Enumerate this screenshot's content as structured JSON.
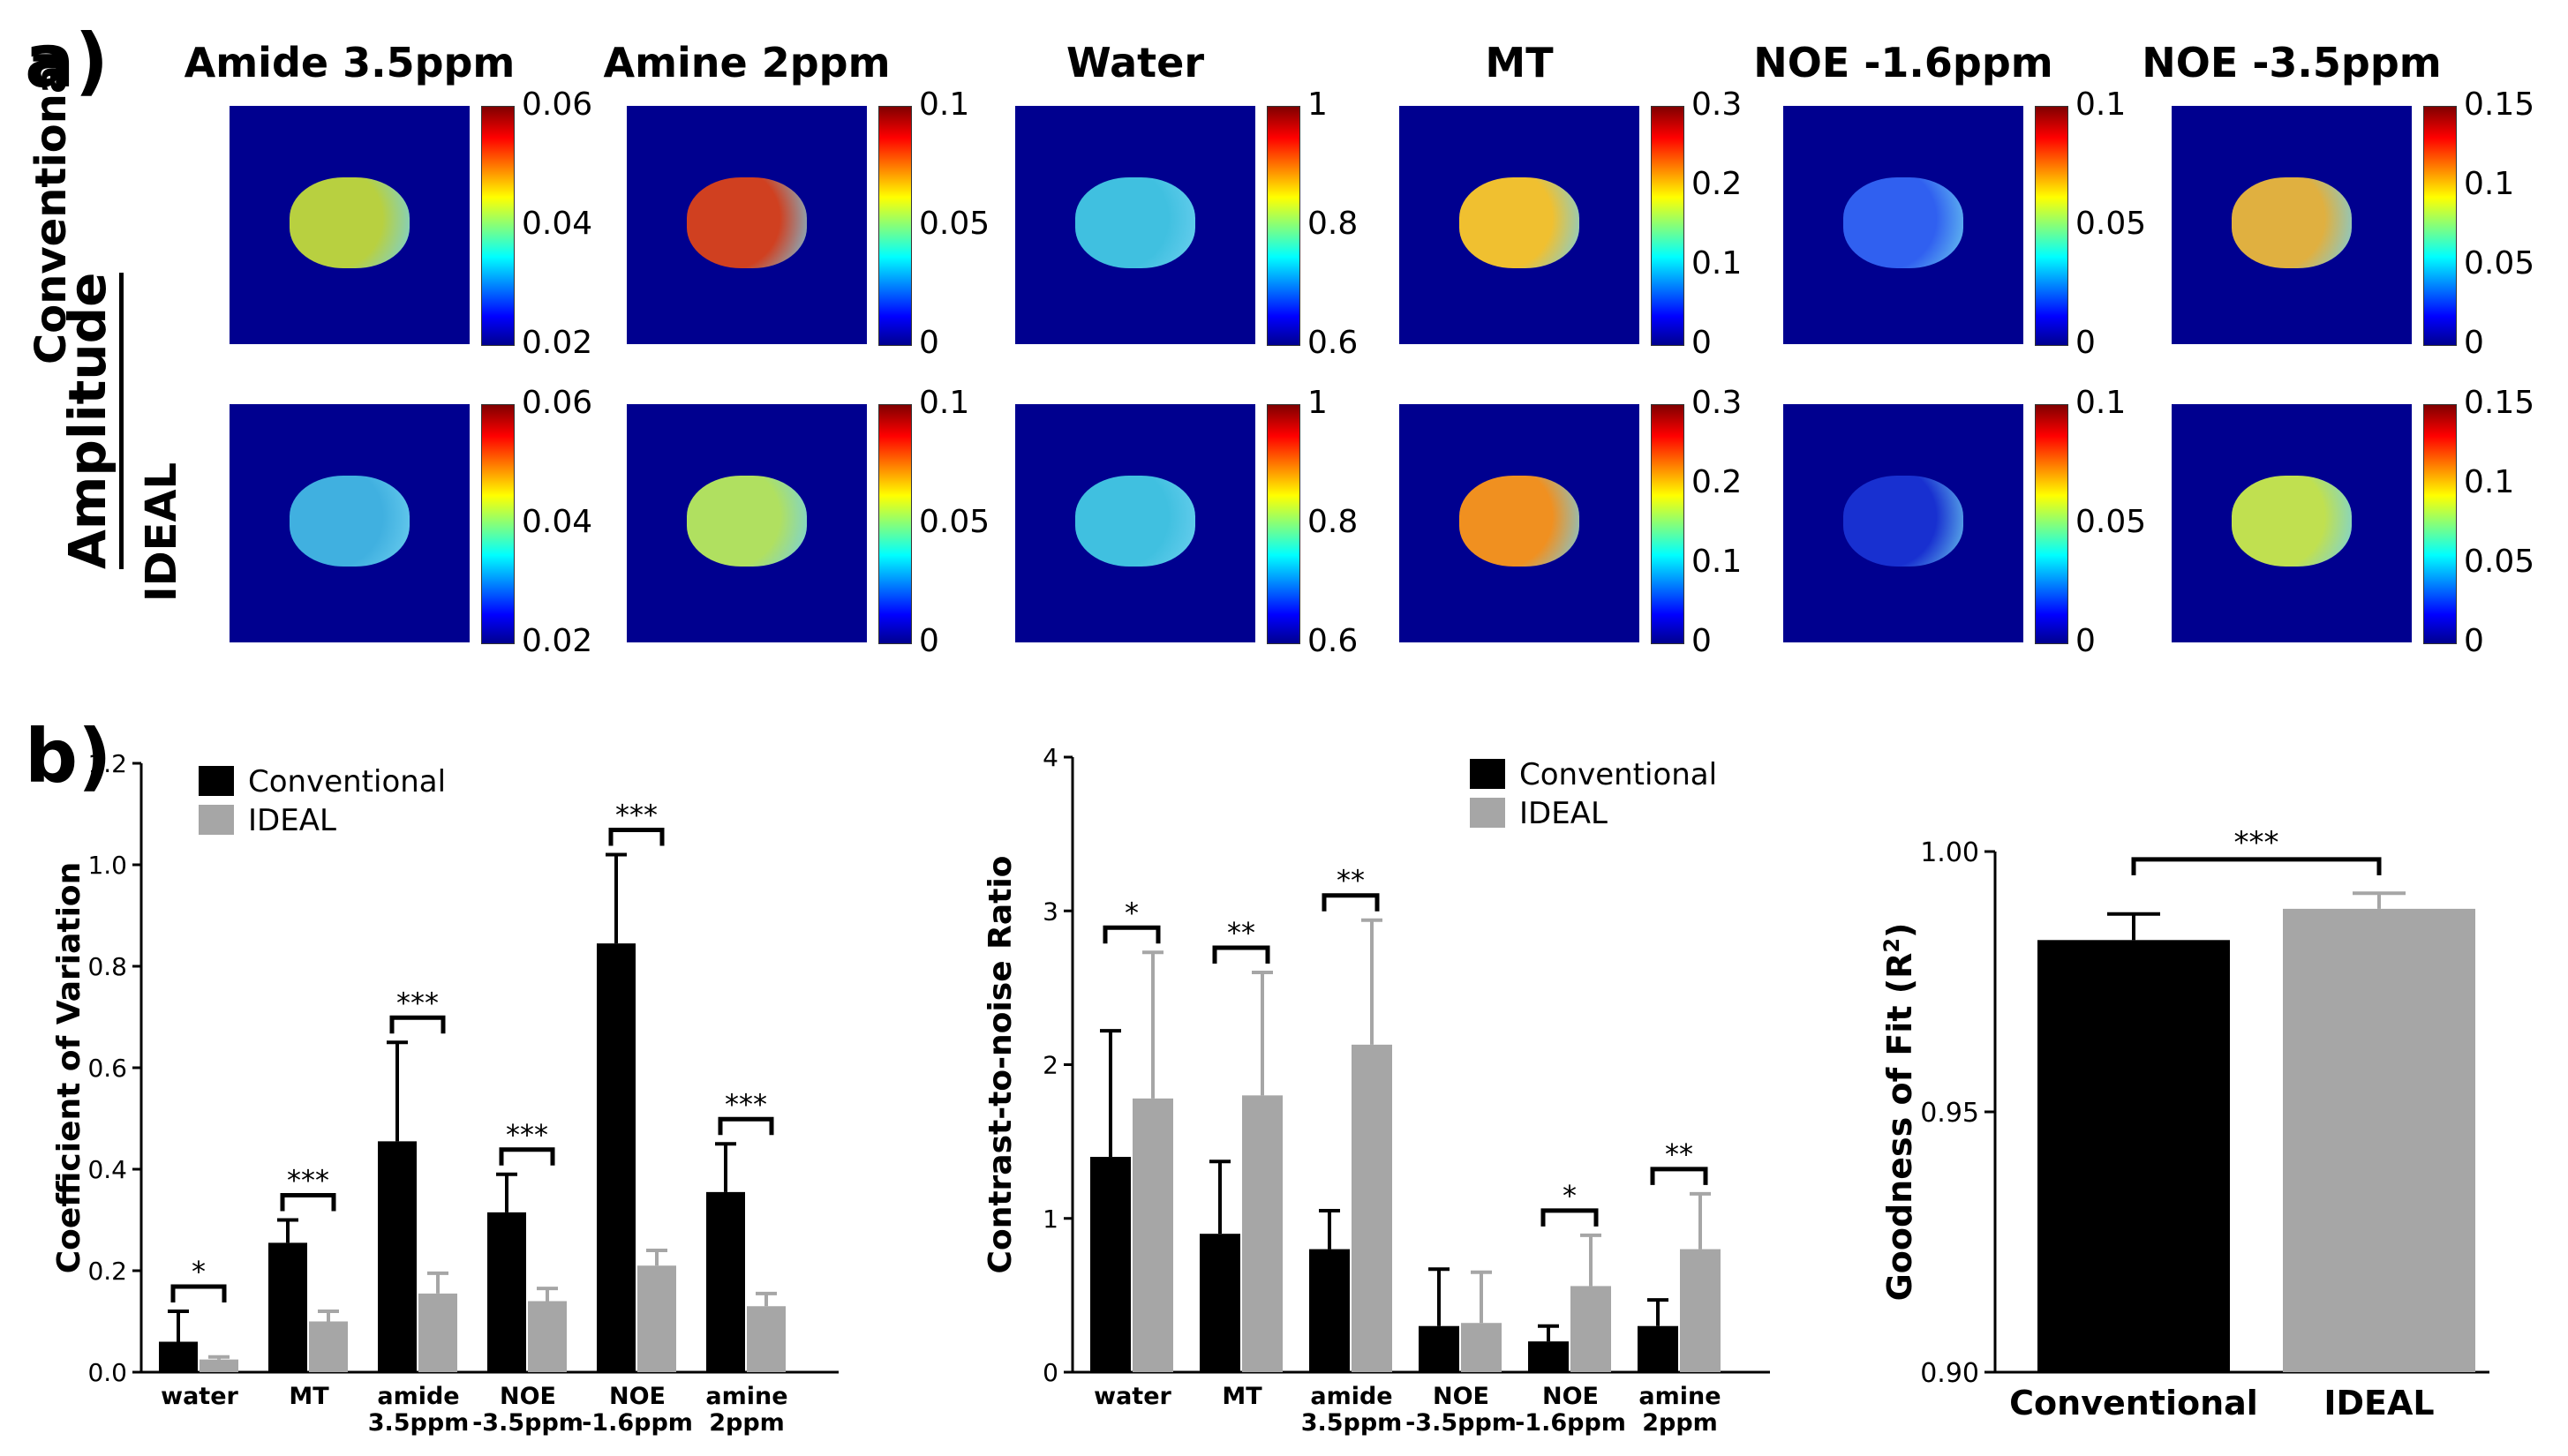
{
  "panel_a": {
    "label": "a)",
    "section_title": "Amplitude",
    "rows": [
      "Conventional",
      "IDEAL"
    ],
    "columns": [
      {
        "title": "Amide 3.5ppm",
        "ticks": [
          "0.06",
          "0.04",
          "0.02"
        ]
      },
      {
        "title": "Amine 2ppm",
        "ticks": [
          "0.1",
          "0.05",
          "0"
        ]
      },
      {
        "title": "Water",
        "ticks": [
          "1",
          "0.8",
          "0.6"
        ]
      },
      {
        "title": "MT",
        "ticks": [
          "0.3",
          "0.2",
          "0.1",
          "0"
        ]
      },
      {
        "title": "NOE -1.6ppm",
        "ticks": [
          "0.1",
          "0.05",
          "0"
        ]
      },
      {
        "title": "NOE -3.5ppm",
        "ticks": [
          "0.15",
          "0.1",
          "0.05",
          "0"
        ]
      }
    ],
    "map_colors": {
      "Conventional": [
        "#b8d040",
        "#d04020",
        "#40c0e0",
        "#f0c030",
        "#3060f0",
        "#e0b040"
      ],
      "IDEAL": [
        "#40b0e0",
        "#b0e060",
        "#40c0e0",
        "#f09020",
        "#1830d0",
        "#c0e050"
      ]
    }
  },
  "panel_b": {
    "label": "b)",
    "chart_data": [
      {
        "type": "bar",
        "title": "",
        "xlabel": "",
        "ylabel": "Coefficient of Variation",
        "ylim": [
          0,
          1.2
        ],
        "yticks": [
          "0.0",
          "0.2",
          "0.4",
          "0.6",
          "0.8",
          "1.0",
          "1.2"
        ],
        "categories": [
          [
            "water"
          ],
          [
            "MT"
          ],
          [
            "amide",
            "3.5ppm"
          ],
          [
            "NOE",
            "-3.5ppm"
          ],
          [
            "NOE",
            "-1.6ppm"
          ],
          [
            "amine",
            "2ppm"
          ]
        ],
        "series": [
          {
            "name": "Conventional",
            "color": "#000000",
            "values": [
              0.06,
              0.255,
              0.455,
              0.315,
              0.845,
              0.355
            ],
            "errors": [
              0.06,
              0.045,
              0.195,
              0.075,
              0.175,
              0.095
            ]
          },
          {
            "name": "IDEAL",
            "color": "#a6a6a6",
            "values": [
              0.025,
              0.1,
              0.155,
              0.14,
              0.21,
              0.13
            ],
            "errors": [
              0.005,
              0.02,
              0.04,
              0.025,
              0.03,
              0.025
            ]
          }
        ],
        "significance": [
          "*",
          "***",
          "***",
          "***",
          "***",
          "***"
        ],
        "legend_position": "top-left"
      },
      {
        "type": "bar",
        "title": "",
        "xlabel": "",
        "ylabel": "Contrast-to-noise Ratio",
        "ylim": [
          0,
          4
        ],
        "yticks": [
          "0",
          "1",
          "2",
          "3",
          "4"
        ],
        "categories": [
          [
            "water"
          ],
          [
            "MT"
          ],
          [
            "amide",
            "3.5ppm"
          ],
          [
            "NOE",
            "-3.5ppm"
          ],
          [
            "NOE",
            "-1.6ppm"
          ],
          [
            "amine",
            "2ppm"
          ]
        ],
        "series": [
          {
            "name": "Conventional",
            "color": "#000000",
            "values": [
              1.4,
              0.9,
              0.8,
              0.3,
              0.2,
              0.3
            ],
            "errors": [
              0.82,
              0.47,
              0.25,
              0.37,
              0.1,
              0.17
            ]
          },
          {
            "name": "IDEAL",
            "color": "#a6a6a6",
            "values": [
              1.78,
              1.8,
              2.13,
              0.32,
              0.56,
              0.8
            ],
            "errors": [
              0.95,
              0.8,
              0.81,
              0.33,
              0.33,
              0.36
            ]
          }
        ],
        "significance": [
          "*",
          "**",
          "**",
          "",
          "*",
          "**"
        ],
        "legend_position": "top-right"
      },
      {
        "type": "bar",
        "title": "",
        "xlabel": "",
        "ylabel": "Goodness of Fit (R",
        "ylabel_sup": "2",
        "ylabel_end": ")",
        "ylim": [
          0.9,
          1.0
        ],
        "yticks": [
          "0.90",
          "0.95",
          "1.00"
        ],
        "categories": [
          "Conventional",
          "IDEAL"
        ],
        "values": [
          0.983,
          0.989
        ],
        "errors": [
          0.005,
          0.003
        ],
        "colors": [
          "#000000",
          "#a6a6a6"
        ],
        "significance": "***"
      }
    ]
  }
}
